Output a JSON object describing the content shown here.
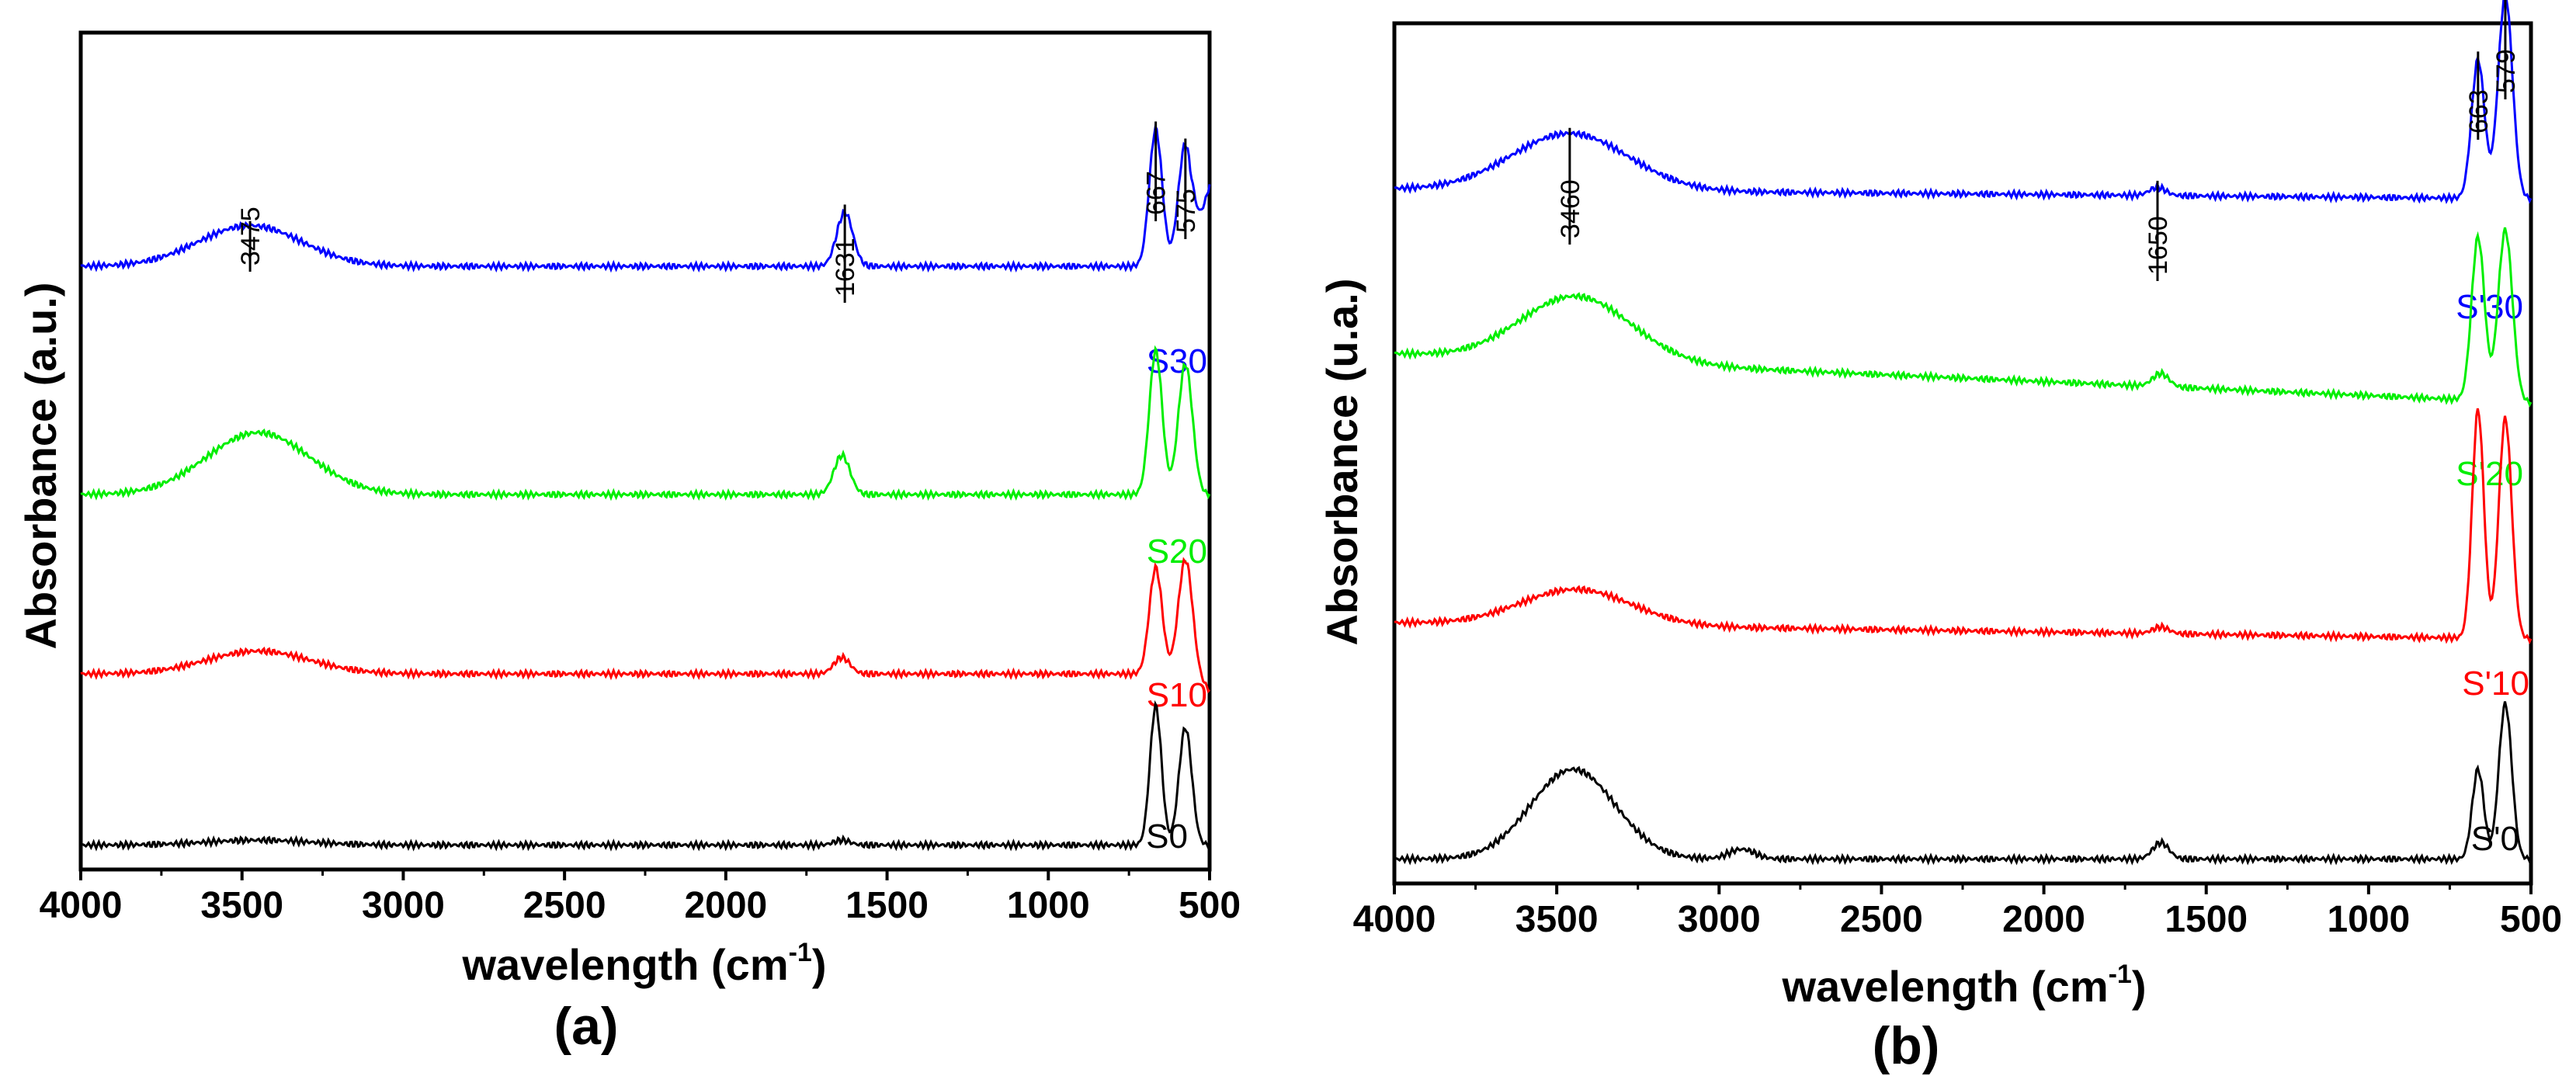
{
  "chart_data": [
    {
      "type": "line",
      "panel_label": "(a)",
      "xlabel": "wavelength (cm",
      "xlabel_sup": "-1",
      "xlabel_close": ")",
      "ylabel": "Absorbance (a.u.)",
      "xlim": [
        4000,
        500
      ],
      "xticks": [
        "4000",
        "3500",
        "3000",
        "2500",
        "2000",
        "1500",
        "1000",
        "500"
      ],
      "series": [
        {
          "name": "S30",
          "color": "#0000ff",
          "base": 3.7,
          "peaks": [
            [
              3475,
              0.25,
              160
            ],
            [
              1631,
              0.33,
              25
            ],
            [
              667,
              0.84,
              20
            ],
            [
              575,
              0.75,
              22
            ]
          ],
          "tail": 0.5
        },
        {
          "name": "S20",
          "color": "#00ee00",
          "base": 2.3,
          "peaks": [
            [
              3450,
              0.38,
              160
            ],
            [
              1640,
              0.24,
              25
            ],
            [
              667,
              0.88,
              20
            ],
            [
              575,
              0.8,
              22
            ]
          ],
          "tail": 0.0
        },
        {
          "name": "S10",
          "color": "#ff0000",
          "base": 1.2,
          "peaks": [
            [
              3450,
              0.14,
              160
            ],
            [
              1640,
              0.1,
              25
            ],
            [
              667,
              0.65,
              20
            ],
            [
              575,
              0.7,
              22
            ]
          ],
          "tail": -0.1
        },
        {
          "name": "S0",
          "color": "#000000",
          "base": 0.15,
          "peaks": [
            [
              3450,
              0.03,
              160
            ],
            [
              1640,
              0.03,
              25
            ],
            [
              667,
              0.85,
              18
            ],
            [
              575,
              0.72,
              20
            ]
          ],
          "tail": 0.0
        }
      ],
      "annotations": [
        "3475",
        "1631",
        "667",
        "575"
      ]
    },
    {
      "type": "line",
      "panel_label": "(b)",
      "xlabel": "wavelength (cm",
      "xlabel_sup": "-1",
      "xlabel_close": ")",
      "ylabel": "Absorbance (u.a.)",
      "xlim": [
        4000,
        500
      ],
      "xticks": [
        "4000",
        "3500",
        "3000",
        "2500",
        "2000",
        "1500",
        "1000",
        "500"
      ],
      "series": [
        {
          "name": "S'30",
          "color": "#0000ff",
          "base": 4.2,
          "slope": 0.06,
          "peaks": [
            [
              3460,
              0.35,
              180
            ],
            [
              1650,
              0.05,
              25
            ],
            [
              663,
              0.85,
              20
            ],
            [
              579,
              1.25,
              22
            ]
          ],
          "tail": 0.0
        },
        {
          "name": "S'20",
          "color": "#00ee00",
          "base": 2.95,
          "slope": 0.3,
          "peaks": [
            [
              3440,
              0.4,
              170
            ],
            [
              1640,
              0.08,
              25
            ],
            [
              663,
              1.0,
              20
            ],
            [
              579,
              1.05,
              22
            ]
          ],
          "tail": 0.0
        },
        {
          "name": "S'10",
          "color": "#ff0000",
          "base": 1.5,
          "slope": 0.1,
          "peaks": [
            [
              3440,
              0.22,
              170
            ],
            [
              1640,
              0.04,
              25
            ],
            [
              663,
              1.4,
              18
            ],
            [
              579,
              1.35,
              20
            ]
          ],
          "tail": 0.0
        },
        {
          "name": "S'0",
          "color": "#000000",
          "base": 0.15,
          "slope": 0.0,
          "peaks": [
            [
              3450,
              0.55,
              130
            ],
            [
              2930,
              0.06,
              40
            ],
            [
              1640,
              0.1,
              25
            ],
            [
              663,
              0.55,
              18
            ],
            [
              579,
              0.95,
              20
            ]
          ],
          "tail": 0.0
        }
      ],
      "annotations": [
        "3460",
        "1650",
        "663",
        "579"
      ]
    }
  ]
}
